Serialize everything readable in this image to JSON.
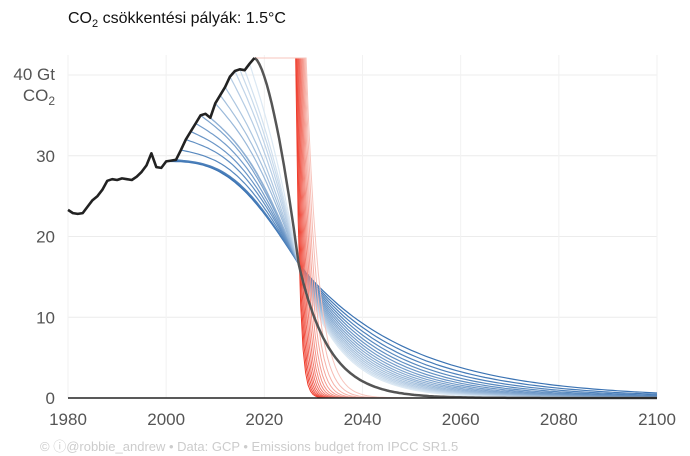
{
  "chart_data": {
    "type": "line",
    "title_prefix": "CO",
    "title_sub": "2",
    "title_suffix": " csökkentési pályák: 1.5°C",
    "ylabel_line1": "40 Gt",
    "ylabel_line2_prefix": "CO",
    "ylabel_line2_sub": "2",
    "xlim": [
      1980,
      2100
    ],
    "ylim": [
      0,
      42
    ],
    "x_ticks": [
      1980,
      2000,
      2020,
      2040,
      2060,
      2080,
      2100
    ],
    "y_ticks": [
      0,
      10,
      20,
      30
    ],
    "grid": true,
    "credit": "© ⓘ@robbie_andrew  •  Data: GCP  •  Emissions budget from IPCC SR1.5",
    "historical": {
      "x": [
        1980,
        1981,
        1982,
        1983,
        1984,
        1985,
        1986,
        1987,
        1988,
        1989,
        1990,
        1991,
        1992,
        1993,
        1994,
        1995,
        1996,
        1997,
        1998,
        1999,
        2000,
        2001,
        2002,
        2003,
        2004,
        2005,
        2006,
        2007,
        2008,
        2009,
        2010,
        2011,
        2012,
        2013,
        2014,
        2015,
        2016,
        2017,
        2018
      ],
      "y": [
        23.3,
        22.9,
        22.8,
        22.9,
        23.7,
        24.5,
        25.0,
        25.8,
        26.9,
        27.1,
        27.0,
        27.2,
        27.1,
        27.0,
        27.4,
        28.0,
        28.8,
        30.3,
        28.6,
        28.5,
        29.3,
        29.4,
        29.5,
        30.7,
        32.0,
        33.0,
        34.0,
        35.0,
        35.2,
        34.7,
        36.5,
        37.5,
        38.5,
        39.8,
        40.5,
        40.7,
        40.6,
        41.4,
        42.1
      ],
      "color": "#222222"
    },
    "convergence": {
      "x": 2027,
      "y": 16.6
    },
    "central_pathway": {
      "start_year": 2018,
      "start_value": 42.1,
      "color": "#555555"
    },
    "blue_pathways": {
      "start_year": 2000,
      "count": 18,
      "color_dark": "#3b73b3",
      "color_light": "#dbe8f3"
    },
    "red_pathways": {
      "count": 14,
      "plateau": 42.1,
      "drop_start": 2026.4,
      "drop_end": 2028.5,
      "color_dark": "#ee3a2a",
      "color_light": "#f7c5bd"
    }
  }
}
